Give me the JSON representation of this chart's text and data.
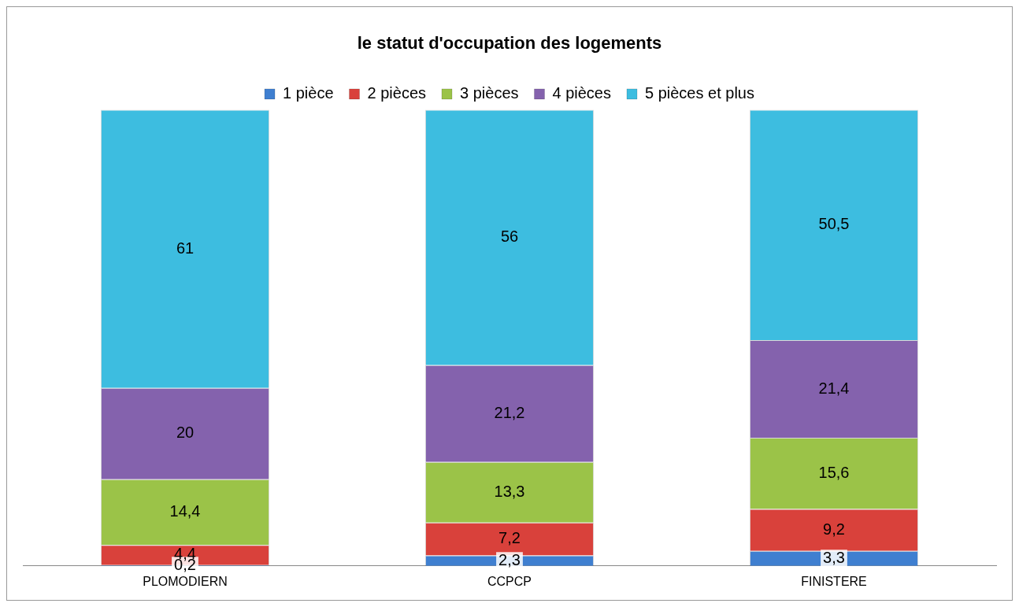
{
  "chart_data": {
    "type": "bar",
    "title": "le statut d'occupation des logements",
    "stacked": true,
    "legend": "top",
    "grid": false,
    "categories": [
      "PLOMODIERN",
      "CCPCP",
      "FINISTERE"
    ],
    "series": [
      {
        "name": "1 pièce",
        "color": "#3f7fd0",
        "values": [
          0.2,
          2.3,
          3.3
        ],
        "value_labels": [
          "0,2",
          "2,3",
          "3,3"
        ]
      },
      {
        "name": "2 pièces",
        "color": "#d9413b",
        "values": [
          4.4,
          7.2,
          9.2
        ],
        "value_labels": [
          "4,4",
          "7,2",
          "9,2"
        ]
      },
      {
        "name": "3 pièces",
        "color": "#9bc348",
        "values": [
          14.4,
          13.3,
          15.6
        ],
        "value_labels": [
          "14,4",
          "13,3",
          "15,6"
        ]
      },
      {
        "name": "4 pièces",
        "color": "#8462ad",
        "values": [
          20,
          21.2,
          21.4
        ],
        "value_labels": [
          "20",
          "21,2",
          "21,4"
        ]
      },
      {
        "name": "5 pièces et plus",
        "color": "#3dbde0",
        "values": [
          61,
          56,
          50.5
        ],
        "value_labels": [
          "61",
          "56",
          "50,5"
        ]
      }
    ]
  }
}
